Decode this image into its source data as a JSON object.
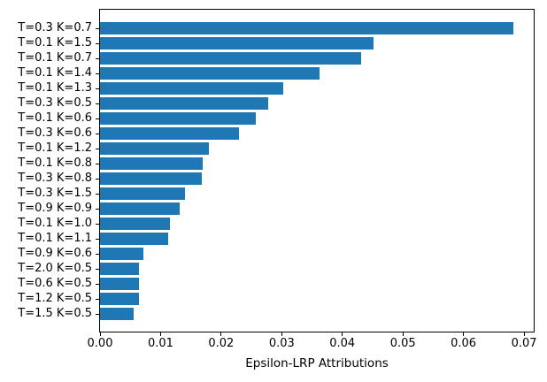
{
  "chart_data": {
    "type": "bar",
    "orientation": "horizontal",
    "title": "",
    "xlabel": "Epsilon-LRP Attributions",
    "ylabel": "",
    "categories": [
      "T=0.3 K=0.7",
      "T=0.1 K=1.5",
      "T=0.1 K=0.7",
      "T=0.1 K=1.4",
      "T=0.1 K=1.3",
      "T=0.3 K=0.5",
      "T=0.1 K=0.6",
      "T=0.3 K=0.6",
      "T=0.1 K=1.2",
      "T=0.1 K=0.8",
      "T=0.3 K=0.8",
      "T=0.3 K=1.5",
      "T=0.9 K=0.9",
      "T=0.1 K=1.0",
      "T=0.1 K=1.1",
      "T=0.9 K=0.6",
      "T=2.0 K=0.5",
      "T=0.6 K=0.5",
      "T=1.2 K=0.5",
      "T=1.5 K=0.5"
    ],
    "values": [
      0.0682,
      0.0452,
      0.0431,
      0.0362,
      0.0303,
      0.0277,
      0.0257,
      0.023,
      0.0179,
      0.0169,
      0.0168,
      0.0141,
      0.0132,
      0.0115,
      0.0112,
      0.0071,
      0.0065,
      0.0065,
      0.0064,
      0.0056
    ],
    "xlim": [
      0,
      0.0716
    ],
    "x_ticks": [
      0.0,
      0.01,
      0.02,
      0.03,
      0.04,
      0.05,
      0.06,
      0.07
    ],
    "x_tick_labels": [
      "0.00",
      "0.01",
      "0.02",
      "0.03",
      "0.04",
      "0.05",
      "0.06",
      "0.07"
    ],
    "grid": false,
    "legend_position": "none",
    "bar_color": "#1f77b4",
    "spine_color": "#000000",
    "text_color": "#000000",
    "background_color": "#ffffff"
  }
}
